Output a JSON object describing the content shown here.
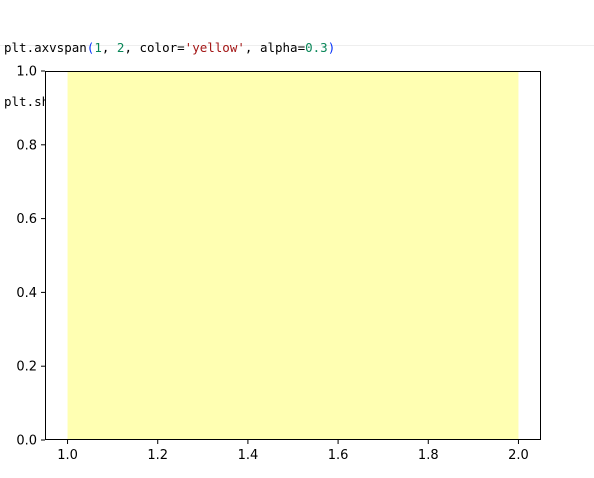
{
  "code": {
    "line1": {
      "fn": "plt.axvspan",
      "open_paren": "(",
      "arg1": "1",
      "sep1": ", ",
      "arg2": "2",
      "sep2": ", color=",
      "color_str": "'yellow'",
      "sep3": ", alpha=",
      "alpha": "0.3",
      "close_paren": ")"
    },
    "line2": {
      "fn": "plt.show",
      "parens": "()"
    }
  },
  "chart_data": {
    "type": "area",
    "xlim": [
      0.95,
      2.05
    ],
    "ylim": [
      0.0,
      1.0
    ],
    "span": {
      "x_start": 1.0,
      "x_end": 2.0,
      "color": "#ffff00",
      "alpha": 0.3
    },
    "x_ticks": [
      "1.0",
      "1.2",
      "1.4",
      "1.6",
      "1.8",
      "2.0"
    ],
    "x_tick_values": [
      1.0,
      1.2,
      1.4,
      1.6,
      1.8,
      2.0
    ],
    "y_ticks": [
      "0.0",
      "0.2",
      "0.4",
      "0.6",
      "0.8",
      "1.0"
    ],
    "y_tick_values": [
      0.0,
      0.2,
      0.4,
      0.6,
      0.8,
      1.0
    ],
    "grid": false
  }
}
